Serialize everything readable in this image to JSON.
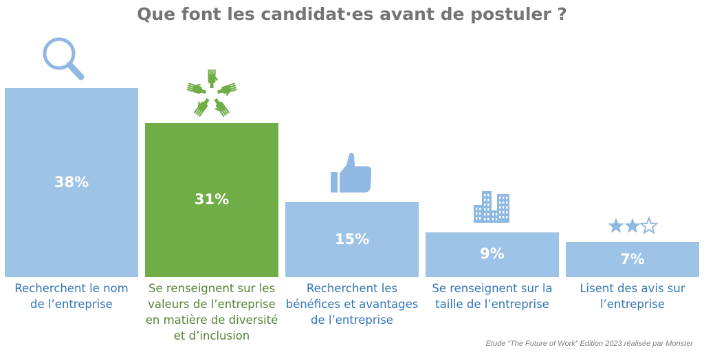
{
  "title": "Que font les candidat·es avant de postuler ?",
  "source": "Etude “The Future of Work” Edition 2023 réalisée par Monster",
  "colors": {
    "blue": "#9dc3e6",
    "green": "#70ad47",
    "blue_text": "#2e75b6",
    "green_text": "#548235"
  },
  "chart_data": {
    "type": "bar",
    "title": "Que font les candidat·es avant de postuler ?",
    "ylim": [
      0,
      38
    ],
    "grid": false,
    "categories": [
      "Recherchent le nom de l’entreprise",
      "Se renseignent sur les valeurs de l’entreprise en matière de diversité et d’inclusion",
      "Recherchent les bénéfices et avantages de l’entreprise",
      "Se renseignent sur la taille de l’entreprise",
      "Lisent des avis sur l’entreprise"
    ],
    "values": [
      38,
      31,
      15,
      9,
      7
    ],
    "value_labels": [
      "38%",
      "31%",
      "15%",
      "9%",
      "7%"
    ],
    "label_lines": [
      [
        "Recherchent le nom",
        "de l’entreprise"
      ],
      [
        "Se renseignent sur les",
        "valeurs de l’entreprise",
        "en matière de diversité",
        "et d’inclusion"
      ],
      [
        "Recherchent les",
        "bénéfices et avantages",
        "de l’entreprise"
      ],
      [
        "Se renseignent sur la",
        "taille de l’entreprise"
      ],
      [
        "Lisent des avis sur",
        "l’entreprise"
      ]
    ],
    "bar_colors": [
      "#9dc3e6",
      "#70ad47",
      "#9dc3e6",
      "#9dc3e6",
      "#9dc3e6"
    ],
    "label_colors": [
      "#2e75b6",
      "#548235",
      "#2e75b6",
      "#2e75b6",
      "#2e75b6"
    ],
    "icons": [
      "magnifier-icon",
      "hands-circle-icon",
      "thumbs-up-icon",
      "buildings-icon",
      "stars-rating-icon"
    ],
    "rating": {
      "filled": 2,
      "total": 3
    }
  }
}
